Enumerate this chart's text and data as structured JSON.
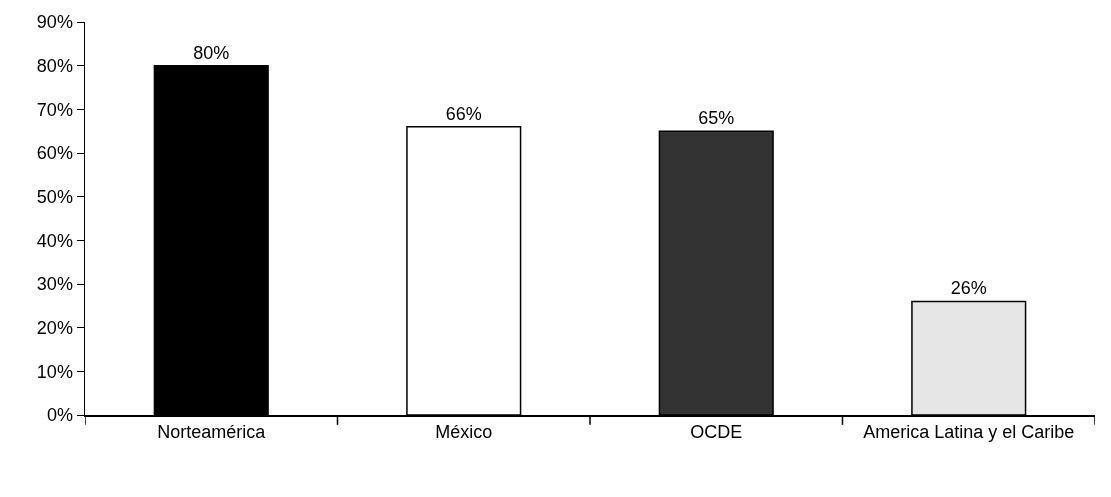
{
  "chart_data": {
    "type": "bar",
    "categories": [
      "Norteamérica",
      "México",
      "OCDE",
      "America Latina y el Caribe"
    ],
    "values": [
      80,
      66,
      65,
      26
    ],
    "colors": [
      "#000000",
      "#ffffff",
      "#333333",
      "#e6e6e6"
    ],
    "value_labels": [
      "80%",
      "66%",
      "65%",
      "26%"
    ],
    "ylim": [
      0,
      90
    ],
    "yticks": [
      {
        "value": 0,
        "label": "0%"
      },
      {
        "value": 10,
        "label": "10%"
      },
      {
        "value": 20,
        "label": "20%"
      },
      {
        "value": 30,
        "label": "30%"
      },
      {
        "value": 40,
        "label": "40%"
      },
      {
        "value": 50,
        "label": "50%"
      },
      {
        "value": 60,
        "label": "60%"
      },
      {
        "value": 70,
        "label": "70%"
      },
      {
        "value": 80,
        "label": "80%"
      },
      {
        "value": 90,
        "label": "90%"
      }
    ],
    "grid": false,
    "legend": false
  }
}
